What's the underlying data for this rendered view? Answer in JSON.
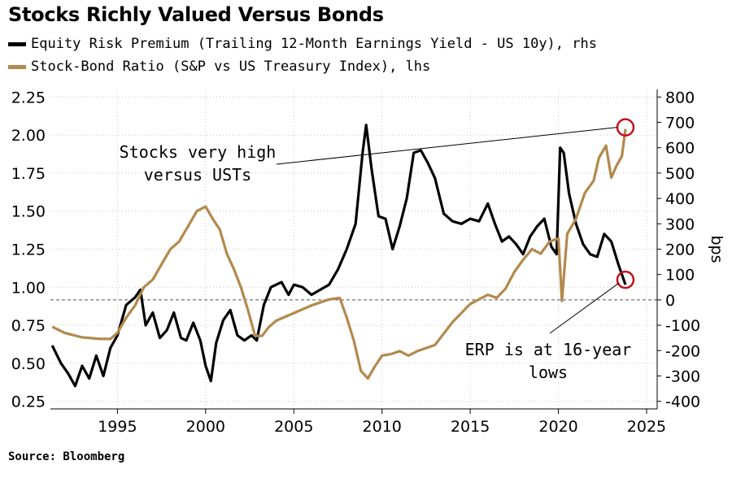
{
  "chart_data": {
    "type": "line",
    "title": "Stocks Richly Valued Versus Bonds",
    "source": "Source: Bloomberg",
    "x_ticks": [
      1995,
      2000,
      2005,
      2010,
      2015,
      2020,
      2025
    ],
    "xlim": [
      1991.2,
      2025.6
    ],
    "left_axis": {
      "ylim": [
        0.2,
        2.3
      ],
      "ticks": [
        "0.25",
        "0.50",
        "0.75",
        "1.00",
        "1.25",
        "1.50",
        "1.75",
        "2.00",
        "2.25"
      ]
    },
    "right_axis": {
      "label": "bps",
      "ylim": [
        -430,
        830
      ],
      "ticks": [
        "800",
        "700",
        "600",
        "500",
        "400",
        "300",
        "200",
        "100",
        "0",
        "-100",
        "-200",
        "-300",
        "-400"
      ]
    },
    "series": [
      {
        "name": "Equity Risk Premium (Trailing 12-Month Earnings Yield - US 10y), rhs",
        "axis": "right",
        "color": "#000000",
        "x": [
          1991.3,
          1991.8,
          1992.2,
          1992.6,
          1993.0,
          1993.4,
          1993.8,
          1994.2,
          1994.6,
          1995.0,
          1995.5,
          1996.0,
          1996.3,
          1996.6,
          1997.0,
          1997.4,
          1997.8,
          1998.2,
          1998.6,
          1998.9,
          1999.3,
          1999.7,
          2000.0,
          2000.3,
          2000.6,
          2001.0,
          2001.4,
          2001.8,
          2002.2,
          2002.6,
          2002.9,
          2003.3,
          2003.7,
          2004.0,
          2004.3,
          2004.7,
          2005.0,
          2005.5,
          2006.0,
          2006.5,
          2007.0,
          2007.5,
          2008.0,
          2008.5,
          2008.9,
          2009.1,
          2009.4,
          2009.8,
          2010.2,
          2010.6,
          2011.0,
          2011.4,
          2011.8,
          2012.2,
          2012.6,
          2013.0,
          2013.5,
          2014.0,
          2014.5,
          2015.0,
          2015.5,
          2016.0,
          2016.4,
          2016.8,
          2017.2,
          2017.6,
          2018.0,
          2018.4,
          2018.8,
          2019.2,
          2019.6,
          2019.9,
          2020.1,
          2020.3,
          2020.6,
          2021.0,
          2021.4,
          2021.8,
          2022.2,
          2022.6,
          2023.0,
          2023.4,
          2023.8
        ],
        "y": [
          -180,
          -250,
          -290,
          -340,
          -260,
          -310,
          -220,
          -300,
          -190,
          -140,
          -20,
          10,
          40,
          -100,
          -50,
          -150,
          -120,
          -50,
          -150,
          -160,
          -90,
          -160,
          -260,
          -320,
          -170,
          -80,
          -40,
          -140,
          -160,
          -140,
          -160,
          -20,
          50,
          60,
          70,
          20,
          60,
          50,
          20,
          40,
          60,
          120,
          200,
          300,
          580,
          690,
          520,
          330,
          320,
          200,
          290,
          400,
          580,
          590,
          540,
          480,
          340,
          310,
          300,
          320,
          310,
          380,
          300,
          230,
          250,
          220,
          180,
          250,
          290,
          320,
          210,
          180,
          600,
          580,
          420,
          300,
          220,
          180,
          170,
          260,
          230,
          140,
          60
        ]
      },
      {
        "name": "Stock-Bond Ratio (S&P vs US Treasury Index), lhs",
        "axis": "left",
        "color": "#b3894d",
        "x": [
          1991.3,
          1992.0,
          1993.0,
          1994.0,
          1994.6,
          1995.0,
          1995.5,
          1996.0,
          1996.5,
          1997.0,
          1997.5,
          1998.0,
          1998.5,
          1999.0,
          1999.5,
          2000.0,
          2000.4,
          2000.8,
          2001.2,
          2001.6,
          2002.0,
          2002.4,
          2002.8,
          2003.2,
          2003.6,
          2004.0,
          2005.0,
          2006.0,
          2007.0,
          2007.6,
          2008.0,
          2008.4,
          2008.8,
          2009.2,
          2009.6,
          2010.0,
          2010.5,
          2011.0,
          2011.5,
          2012.0,
          2013.0,
          2014.0,
          2015.0,
          2016.0,
          2016.5,
          2017.0,
          2017.5,
          2018.0,
          2018.5,
          2019.0,
          2019.5,
          2020.0,
          2020.2,
          2020.5,
          2021.0,
          2021.5,
          2022.0,
          2022.3,
          2022.7,
          2023.0,
          2023.3,
          2023.6,
          2023.8
        ],
        "y": [
          0.74,
          0.7,
          0.67,
          0.66,
          0.66,
          0.7,
          0.8,
          0.88,
          1.0,
          1.05,
          1.15,
          1.25,
          1.3,
          1.4,
          1.5,
          1.53,
          1.45,
          1.38,
          1.22,
          1.12,
          1.0,
          0.85,
          0.68,
          0.68,
          0.74,
          0.78,
          0.83,
          0.88,
          0.92,
          0.93,
          0.8,
          0.65,
          0.45,
          0.4,
          0.48,
          0.55,
          0.56,
          0.58,
          0.55,
          0.58,
          0.62,
          0.77,
          0.89,
          0.95,
          0.93,
          0.99,
          1.1,
          1.18,
          1.25,
          1.22,
          1.3,
          1.32,
          0.91,
          1.35,
          1.45,
          1.62,
          1.7,
          1.85,
          1.93,
          1.72,
          1.8,
          1.86,
          2.04
        ]
      }
    ],
    "reference_line": {
      "axis": "right",
      "value": 0,
      "style": "dashed"
    },
    "annotations": [
      {
        "lines": [
          "Stocks very high",
          "versus USTs"
        ]
      },
      {
        "lines": [
          "ERP is at 16-year",
          "lows"
        ]
      }
    ]
  }
}
